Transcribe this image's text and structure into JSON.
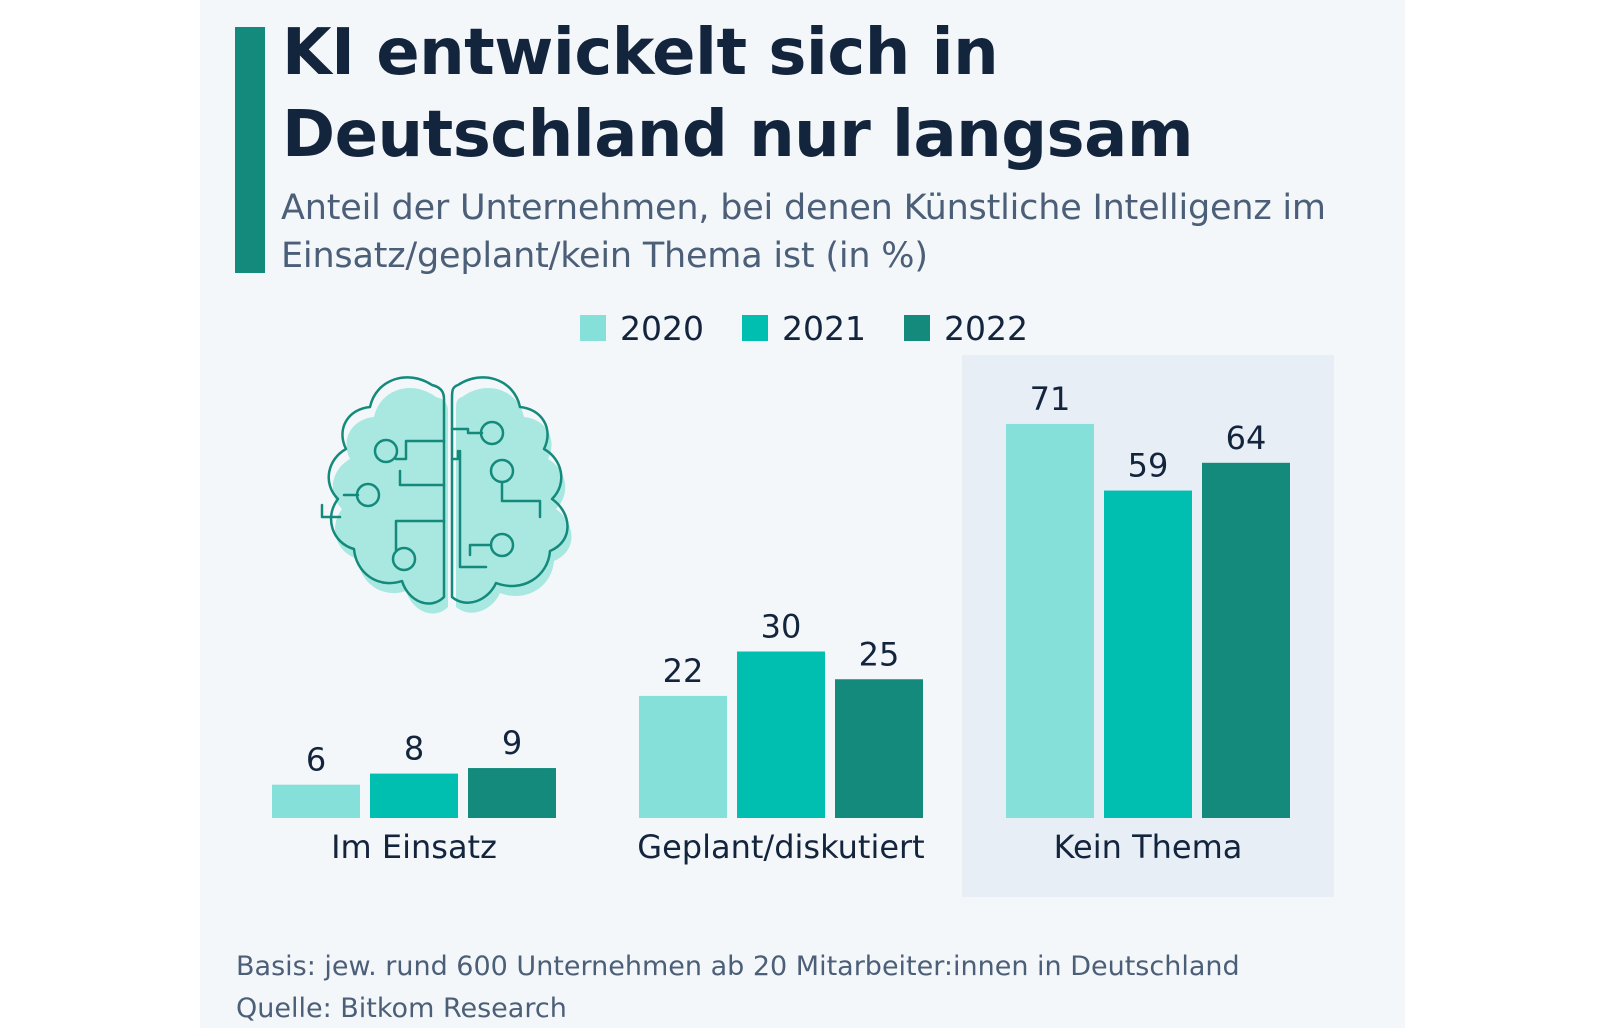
{
  "title": "KI entwickelt sich in Deutschland nur langsam",
  "subtitle": "Anteil der Unternehmen, bei denen Künstliche Intelligenz im Einsatz/geplant/kein Thema ist (in %)",
  "footer": {
    "basis": "Basis: jew. rund 600 Unternehmen ab 20 Mitarbeiter:innen in Deutschland",
    "source": "Quelle: Bitkom Research"
  },
  "icon": "brain-circuit-icon",
  "colors": {
    "accent": "#138a7b",
    "y2020": "#84e0d8",
    "y2021": "#00bfb0",
    "y2022": "#138a7b",
    "highlight": "#e8eef6",
    "text": "#13243d"
  },
  "chart_data": {
    "type": "bar",
    "title": "KI entwickelt sich in Deutschland nur langsam",
    "categories": [
      "Im Einsatz",
      "Geplant/diskutiert",
      "Kein Thema"
    ],
    "series": [
      {
        "name": "2020",
        "values": [
          6,
          22,
          71
        ],
        "color": "#84e0d8"
      },
      {
        "name": "2021",
        "values": [
          8,
          30,
          59
        ],
        "color": "#00bfb0"
      },
      {
        "name": "2022",
        "values": [
          9,
          25,
          64
        ],
        "color": "#138a7b"
      }
    ],
    "ylim": [
      0,
      80
    ],
    "grid": false,
    "legend_position": "top",
    "data_labels": true,
    "highlighted_category": "Kein Thema"
  }
}
